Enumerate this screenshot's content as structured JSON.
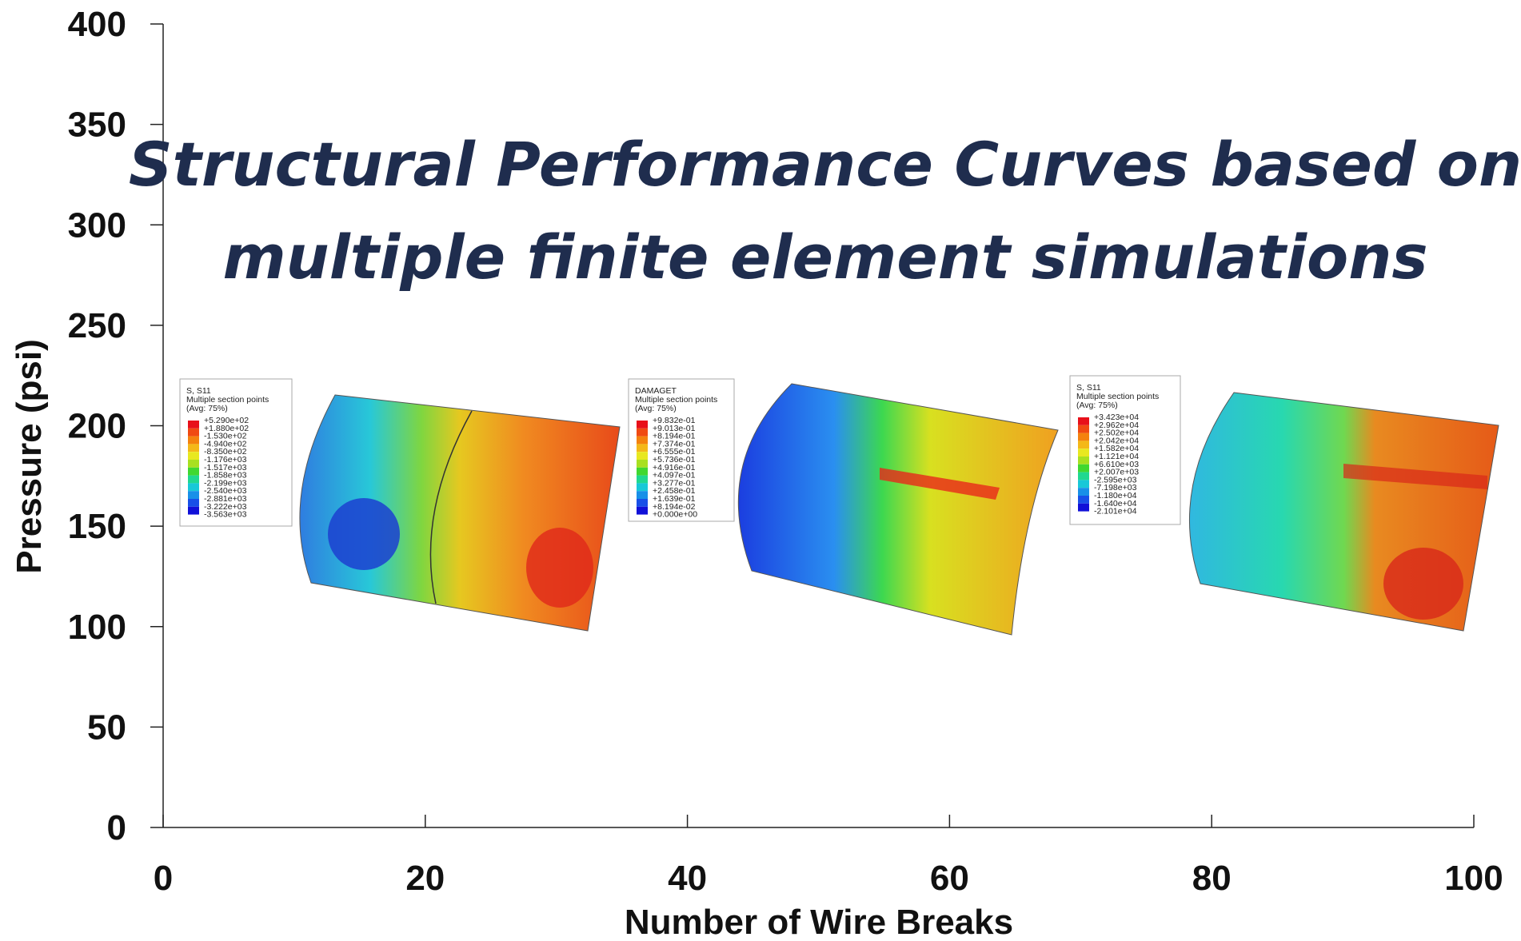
{
  "chart_data": {
    "type": "line",
    "title": [
      "Structural Performance Curves based on",
      "multiple finite element simulations"
    ],
    "xlabel": "Number of Wire Breaks",
    "ylabel": "Pressure (psi)",
    "xlim": [
      0,
      100
    ],
    "xticks": [
      0,
      20,
      40,
      60,
      80,
      100
    ],
    "ylim": [
      0,
      400
    ],
    "yticks": [
      0,
      50,
      100,
      150,
      200,
      250,
      300,
      350,
      400
    ],
    "insets": [
      {
        "legend_title": [
          "S, S11",
          "Multiple section points",
          "(Avg: 75%)"
        ],
        "legend_values": [
          "+5.290e+02",
          "+1.880e+02",
          "-1.530e+02",
          "-4.940e+02",
          "-8.350e+02",
          "-1.176e+03",
          "-1.517e+03",
          "-1.858e+03",
          "-2.199e+03",
          "-2.540e+03",
          "-2.881e+03",
          "-3.222e+03",
          "-3.563e+03"
        ]
      },
      {
        "legend_title": [
          "DAMAGET",
          "Multiple section points",
          "(Avg: 75%)"
        ],
        "legend_values": [
          "+9.832e-01",
          "+9.013e-01",
          "+8.194e-01",
          "+7.374e-01",
          "+6.555e-01",
          "+5.736e-01",
          "+4.916e-01",
          "+4.097e-01",
          "+3.277e-01",
          "+2.458e-01",
          "+1.639e-01",
          "+8.194e-02",
          "+0.000e+00"
        ]
      },
      {
        "legend_title": [
          "S, S11",
          "Multiple section points",
          "(Avg: 75%)"
        ],
        "legend_values": [
          "+3.423e+04",
          "+2.962e+04",
          "+2.502e+04",
          "+2.042e+04",
          "+1.582e+04",
          "+1.121e+04",
          "+6.610e+03",
          "+2.007e+03",
          "-2.595e+03",
          "-7.198e+03",
          "-1.180e+04",
          "-1.640e+04",
          "-2.101e+04"
        ]
      }
    ]
  }
}
